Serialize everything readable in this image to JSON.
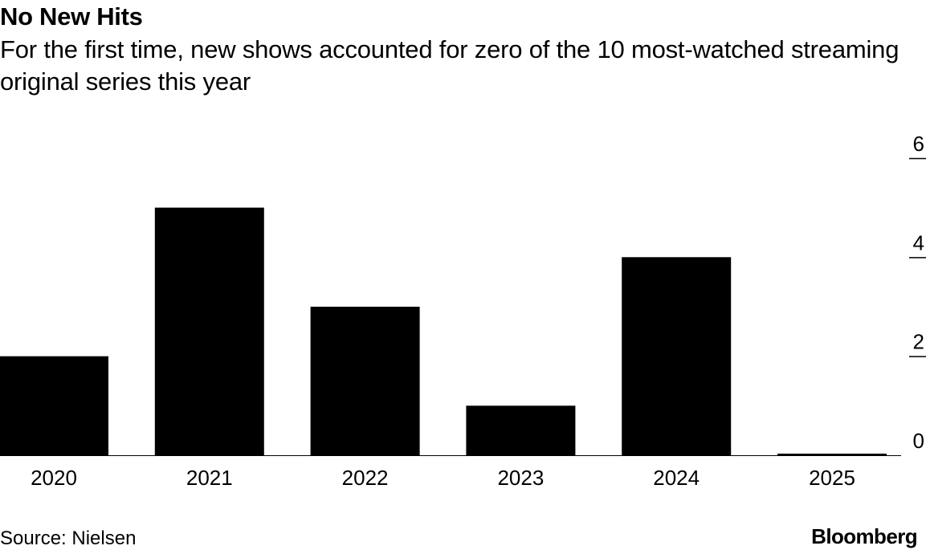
{
  "chart_data": {
    "type": "bar",
    "title": "No New Hits",
    "subtitle": "For the first time, new shows accounted for zero of the 10 most-watched streaming original series this year",
    "categories": [
      "2020",
      "2021",
      "2022",
      "2023",
      "2024",
      "2025"
    ],
    "values": [
      2,
      5,
      3,
      1,
      4,
      0
    ],
    "ylim": [
      0,
      6
    ],
    "yticks": [
      "0",
      "2",
      "4",
      "6"
    ],
    "xlabel": "",
    "ylabel": "",
    "grid": false,
    "legend": "none",
    "bar_color": "#000000",
    "source": "Source: Nielsen"
  },
  "branding": {
    "logo": "Bloomberg"
  }
}
